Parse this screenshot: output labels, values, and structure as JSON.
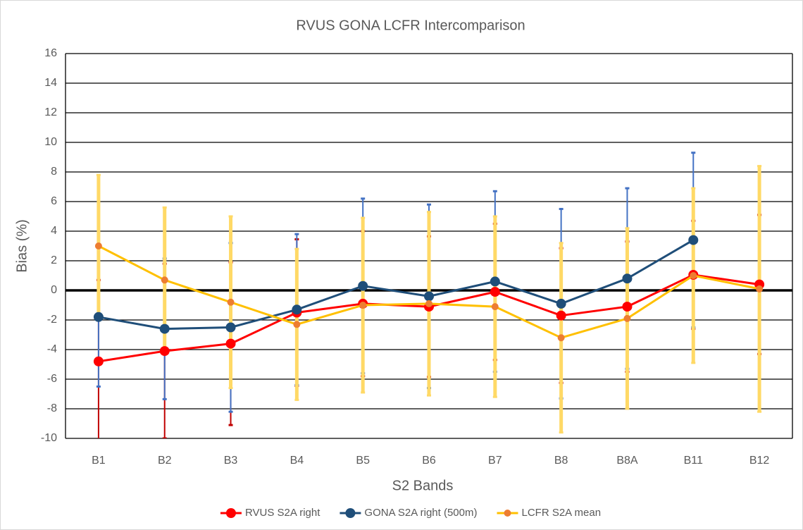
{
  "chart_data": {
    "type": "line",
    "title": "RVUS GONA LCFR Intercomparison",
    "x_label": "S2 Bands",
    "y_label": "Bias (%)",
    "categories": [
      "B1",
      "B2",
      "B3",
      "B4",
      "B5",
      "B6",
      "B7",
      "B8",
      "B8A",
      "B11",
      "B12"
    ],
    "ylim": [
      -10,
      16
    ],
    "yticks": [
      -10,
      -8,
      -6,
      -4,
      -2,
      0,
      2,
      4,
      6,
      8,
      10,
      12,
      14,
      16
    ],
    "grid": true,
    "legend": "bottom",
    "series": [
      {
        "name": "RVUS S2A right",
        "color": "#ff0000",
        "marker_color": "#ff0000",
        "error_color": "#c00000",
        "values": [
          -4.8,
          -4.1,
          -3.6,
          -1.5,
          -0.9,
          -1.1,
          -0.1,
          -1.7,
          -1.1,
          1.05,
          0.4
        ],
        "errors": [
          5.5,
          5.9,
          5.5,
          4.95,
          4.9,
          4.75,
          4.6,
          4.55,
          4.4,
          3.65,
          4.7
        ]
      },
      {
        "name": "GONA S2A right (500m)",
        "color": "#1f4e79",
        "marker_color": "#1f4e79",
        "error_color": "#4472c4",
        "values": [
          -1.8,
          -2.6,
          -2.5,
          -1.3,
          0.3,
          -0.4,
          0.6,
          -0.9,
          0.8,
          3.4,
          null
        ],
        "errors": [
          4.7,
          4.75,
          5.7,
          5.1,
          5.9,
          6.2,
          6.1,
          6.4,
          6.1,
          5.9,
          null
        ]
      },
      {
        "name": "LCFR S2A mean",
        "color": "#ffc000",
        "marker_color": "#ed7d31",
        "error_color": "#ffd966",
        "values": [
          3.0,
          0.7,
          -0.8,
          -2.3,
          -1.0,
          -0.9,
          -1.1,
          -3.2,
          -1.9,
          1.0,
          0.1
        ],
        "errors": [
          4.8,
          4.9,
          5.8,
          5.1,
          5.9,
          6.2,
          6.1,
          6.4,
          6.1,
          5.9,
          8.3
        ]
      }
    ]
  }
}
